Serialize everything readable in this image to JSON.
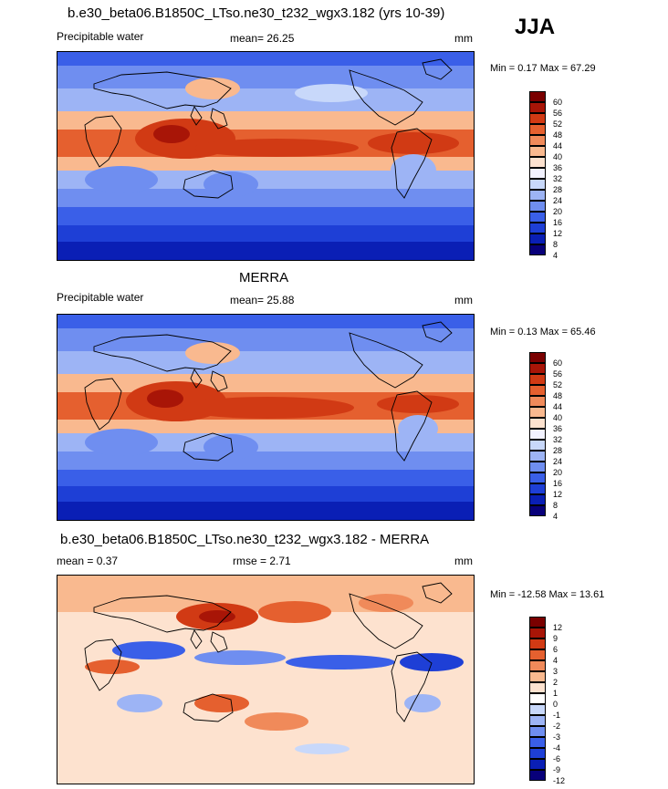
{
  "season": "JJA",
  "colors": {
    "diverging": [
      "#08007a",
      "#0a1fb5",
      "#1e3fd6",
      "#3a5fe8",
      "#6f8ef0",
      "#9db4f5",
      "#c8d8fa",
      "#f2f2ff",
      "#fde2cf",
      "#f9b98f",
      "#f08a5a",
      "#e5602f",
      "#d13a14",
      "#a81507",
      "#7a0000"
    ],
    "land_outline": "#000000"
  },
  "panels": [
    {
      "title": "b.e30_beta06.B1850C_LTso.ne30_t232_wgx3.182 (yrs 10-39)",
      "left_label": "Precipitable water",
      "mid_label": "mean=  26.25",
      "units": "mm",
      "minmax": "Min =   0.17 Max =  67.29",
      "levels": [
        "60",
        "56",
        "52",
        "48",
        "44",
        "40",
        "36",
        "32",
        "28",
        "24",
        "20",
        "16",
        "12",
        "8",
        "4"
      ]
    },
    {
      "title": "MERRA",
      "left_label": "Precipitable water",
      "mid_label": "mean=  25.88",
      "units": "mm",
      "minmax": "Min =   0.13 Max =  65.46",
      "levels": [
        "60",
        "56",
        "52",
        "48",
        "44",
        "40",
        "36",
        "32",
        "28",
        "24",
        "20",
        "16",
        "12",
        "8",
        "4"
      ]
    },
    {
      "title": "b.e30_beta06.B1850C_LTso.ne30_t232_wgx3.182 - MERRA",
      "left_label": "mean =   0.37",
      "mid_label": "rmse =   2.71",
      "units": "mm",
      "minmax": "Min = -12.58 Max =  13.61",
      "levels": [
        "12",
        "9",
        "6",
        "4",
        "3",
        "2",
        "1",
        "0",
        "-1",
        "-2",
        "-3",
        "-4",
        "-6",
        "-9",
        "-12"
      ]
    }
  ],
  "chart_data": [
    {
      "type": "heatmap",
      "title": "b.e30_beta06.B1850C_LTso.ne30_t232_wgx3.182 (yrs 10-39)",
      "variable": "Precipitable water",
      "units": "mm",
      "mean": 26.25,
      "min": 0.17,
      "max": 67.29,
      "contour_levels": [
        4,
        8,
        12,
        16,
        20,
        24,
        28,
        32,
        36,
        40,
        44,
        48,
        52,
        56,
        60
      ]
    },
    {
      "type": "heatmap",
      "title": "MERRA",
      "variable": "Precipitable water",
      "units": "mm",
      "mean": 25.88,
      "min": 0.13,
      "max": 65.46,
      "contour_levels": [
        4,
        8,
        12,
        16,
        20,
        24,
        28,
        32,
        36,
        40,
        44,
        48,
        52,
        56,
        60
      ]
    },
    {
      "type": "heatmap",
      "title": "b.e30_beta06.B1850C_LTso.ne30_t232_wgx3.182 - MERRA",
      "units": "mm",
      "mean": 0.37,
      "rmse": 2.71,
      "min": -12.58,
      "max": 13.61,
      "contour_levels": [
        -12,
        -9,
        -6,
        -4,
        -3,
        -2,
        -1,
        0,
        1,
        2,
        3,
        4,
        6,
        9,
        12
      ]
    }
  ]
}
